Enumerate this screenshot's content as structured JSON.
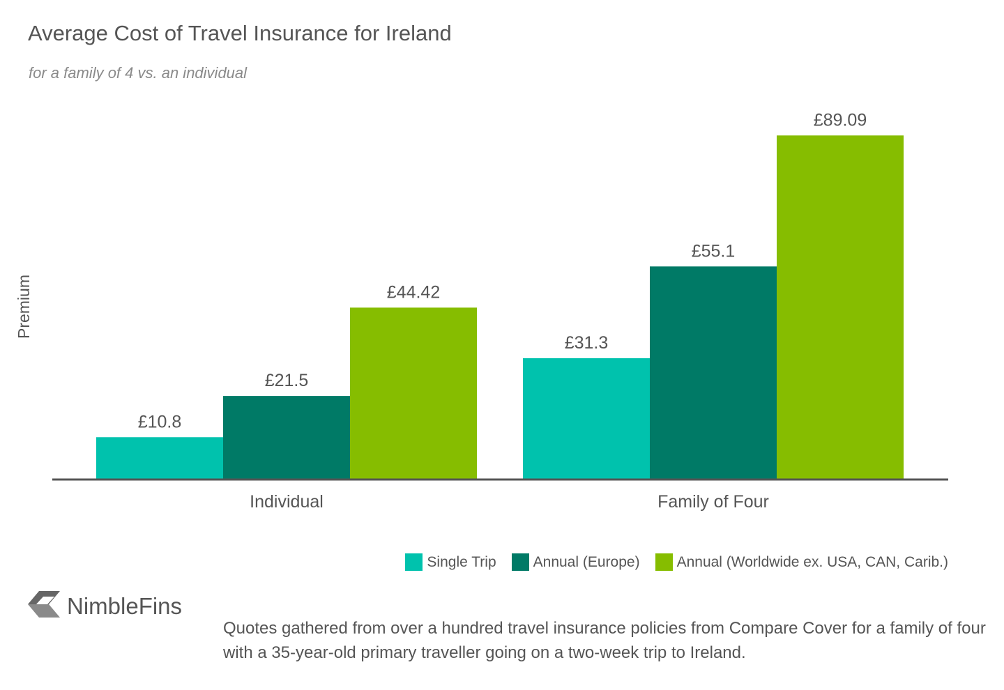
{
  "header": {
    "title": "Average Cost of Travel Insurance for Ireland",
    "subtitle": "for a family of 4 vs. an individual"
  },
  "chart_data": {
    "type": "bar",
    "title": "Average Cost of Travel Insurance for Ireland",
    "subtitle": "for a family of 4 vs. an individual",
    "xlabel": "",
    "ylabel": "Premium",
    "categories": [
      "Individual",
      "Family of Four"
    ],
    "series": [
      {
        "name": "Single Trip",
        "values": [
          10.8,
          31.3
        ],
        "labels": [
          "£10.8",
          "£31.3"
        ],
        "color": "#00c2ad"
      },
      {
        "name": "Annual (Europe)",
        "values": [
          21.5,
          55.1
        ],
        "labels": [
          "£21.5",
          "£55.1"
        ],
        "color": "#007a66"
      },
      {
        "name": "Annual (Worldwide ex. USA, CAN, Carib.)",
        "values": [
          44.42,
          89.09
        ],
        "labels": [
          "£44.42",
          "£89.09"
        ],
        "color": "#86bd00"
      }
    ],
    "ylim": [
      0,
      100
    ],
    "grid": false,
    "legend_position": "bottom-right",
    "axis_color": "#555555",
    "text_color": "#555555"
  },
  "legend": {
    "items": [
      {
        "label": "Single Trip",
        "color": "#00c2ad"
      },
      {
        "label": "Annual (Europe)",
        "color": "#007a66"
      },
      {
        "label": "Annual (Worldwide ex. USA, CAN, Carib.)",
        "color": "#86bd00"
      }
    ]
  },
  "brand": {
    "name": "NimbleFins",
    "icon": "nimblefins-chevron-icon"
  },
  "footnote": "Quotes gathered from over a hundred travel insurance policies from Compare Cover for a family of four with a 35-year-old primary traveller going on a two-week trip to Ireland."
}
